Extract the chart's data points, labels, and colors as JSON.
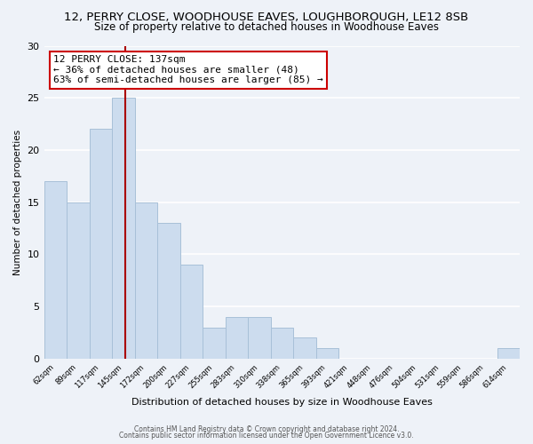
{
  "title1": "12, PERRY CLOSE, WOODHOUSE EAVES, LOUGHBOROUGH, LE12 8SB",
  "title2": "Size of property relative to detached houses in Woodhouse Eaves",
  "xlabel": "Distribution of detached houses by size in Woodhouse Eaves",
  "ylabel": "Number of detached properties",
  "bar_values": [
    17,
    15,
    22,
    25,
    15,
    13,
    9,
    3,
    4,
    4,
    3,
    2,
    1,
    0,
    0,
    0,
    0,
    0,
    0,
    0,
    1
  ],
  "x_labels": [
    "62sqm",
    "89sqm",
    "117sqm",
    "145sqm",
    "172sqm",
    "200sqm",
    "227sqm",
    "255sqm",
    "283sqm",
    "310sqm",
    "338sqm",
    "365sqm",
    "393sqm",
    "421sqm",
    "448sqm",
    "476sqm",
    "504sqm",
    "531sqm",
    "559sqm",
    "586sqm",
    "614sqm"
  ],
  "bar_color": "#ccdcee",
  "bar_edge_color": "#a8c0d8",
  "red_line_x": 3.07,
  "annotation_line1": "12 PERRY CLOSE: 137sqm",
  "annotation_line2": "← 36% of detached houses are smaller (48)",
  "annotation_line3": "63% of semi-detached houses are larger (85) →",
  "annotation_box_color": "#ffffff",
  "annotation_box_edge": "#cc0000",
  "ylim": [
    0,
    30
  ],
  "yticks": [
    0,
    5,
    10,
    15,
    20,
    25,
    30
  ],
  "footer1": "Contains HM Land Registry data © Crown copyright and database right 2024.",
  "footer2": "Contains public sector information licensed under the Open Government Licence v3.0.",
  "bg_color": "#eef2f8",
  "grid_color": "#ffffff",
  "title1_fontsize": 9.5,
  "title2_fontsize": 8.5,
  "annotation_fontsize": 8.0
}
